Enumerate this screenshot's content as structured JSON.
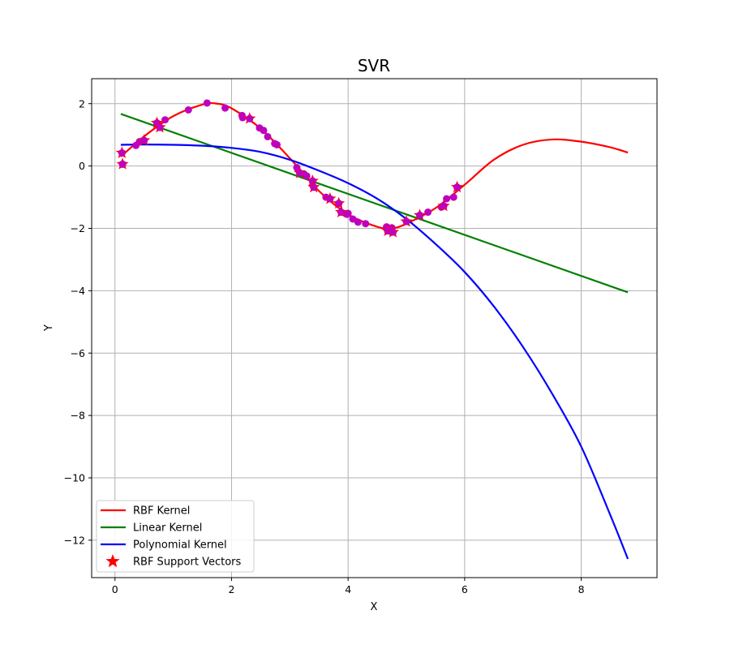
{
  "chart_data": {
    "type": "line",
    "title": "SVR",
    "xlabel": "X",
    "ylabel": "Y",
    "xlim": [
      -0.4,
      9.3
    ],
    "ylim": [
      -13.2,
      2.8
    ],
    "x_ticks": [
      0,
      2,
      4,
      6,
      8
    ],
    "x_tick_labels": [
      "0",
      "2",
      "4",
      "6",
      "8"
    ],
    "y_ticks": [
      2,
      0,
      -2,
      -4,
      -6,
      -8,
      -10,
      -12
    ],
    "y_tick_labels": [
      "2",
      "0",
      "−2",
      "−4",
      "−6",
      "−8",
      "−10",
      "−12"
    ],
    "grid": true,
    "legend_position": "lower-left",
    "colors": {
      "rbf": "#ff0000",
      "linear": "#008000",
      "poly": "#0000ff",
      "points": "#bf00bf",
      "support": "#ff0000",
      "grid": "#b0b0b0"
    },
    "series": [
      {
        "name": "RBF Kernel",
        "color": "#ff0000",
        "x": [
          0.1,
          0.5,
          1.0,
          1.5,
          1.75,
          2.0,
          2.5,
          3.0,
          3.5,
          4.0,
          4.5,
          4.75,
          5.0,
          5.5,
          6.0,
          6.5,
          7.0,
          7.5,
          8.0,
          8.5,
          8.8
        ],
        "y": [
          0.3,
          0.95,
          1.6,
          1.97,
          2.0,
          1.85,
          1.2,
          0.25,
          -0.8,
          -1.55,
          -1.95,
          -2.0,
          -1.85,
          -1.35,
          -0.6,
          0.2,
          0.68,
          0.85,
          0.78,
          0.6,
          0.43
        ]
      },
      {
        "name": "Linear Kernel",
        "color": "#008000",
        "x": [
          0.1,
          8.8
        ],
        "y": [
          1.67,
          -4.05
        ]
      },
      {
        "name": "Polynomial Kernel",
        "color": "#0000ff",
        "x": [
          0.1,
          0.5,
          1.0,
          1.5,
          2.0,
          2.5,
          3.0,
          3.5,
          4.0,
          4.5,
          5.0,
          5.5,
          6.0,
          6.5,
          7.0,
          7.5,
          8.0,
          8.5,
          8.8
        ],
        "y": [
          0.68,
          0.69,
          0.68,
          0.65,
          0.58,
          0.45,
          0.2,
          -0.15,
          -0.55,
          -1.05,
          -1.7,
          -2.5,
          -3.4,
          -4.5,
          -5.8,
          -7.3,
          -9.0,
          -11.2,
          -12.6
        ]
      }
    ],
    "data_points": {
      "x": [
        0.12,
        0.13,
        0.36,
        0.42,
        0.5,
        0.72,
        0.77,
        0.86,
        1.26,
        1.58,
        1.89,
        2.18,
        2.19,
        2.31,
        2.48,
        2.55,
        2.62,
        2.74,
        2.78,
        3.12,
        3.17,
        3.24,
        3.29,
        3.39,
        3.41,
        3.62,
        3.69,
        3.84,
        3.88,
        3.98,
        4.0,
        4.08,
        4.17,
        4.3,
        4.66,
        4.68,
        4.75,
        4.77,
        5.0,
        5.23,
        5.37,
        5.6,
        5.64,
        5.69,
        5.81,
        5.87
      ],
      "y": [
        0.42,
        0.06,
        0.66,
        0.78,
        0.82,
        1.38,
        1.24,
        1.48,
        1.8,
        2.02,
        1.86,
        1.62,
        1.55,
        1.52,
        1.22,
        1.14,
        0.94,
        0.72,
        0.68,
        -0.05,
        -0.22,
        -0.25,
        -0.32,
        -0.48,
        -0.68,
        -1.0,
        -1.05,
        -1.2,
        -1.48,
        -1.55,
        -1.52,
        -1.7,
        -1.8,
        -1.85,
        -1.95,
        -2.08,
        -1.98,
        -2.12,
        -1.78,
        -1.58,
        -1.48,
        -1.32,
        -1.28,
        -1.05,
        -1.0,
        -0.68
      ]
    },
    "support_vectors": {
      "name": "RBF Support Vectors",
      "x": [
        0.12,
        0.13,
        0.5,
        0.72,
        0.77,
        2.31,
        3.17,
        3.39,
        3.41,
        3.69,
        3.84,
        3.88,
        4.68,
        4.77,
        5.0,
        5.23,
        5.64,
        5.87
      ],
      "y": [
        0.42,
        0.06,
        0.82,
        1.38,
        1.24,
        1.52,
        -0.22,
        -0.48,
        -0.68,
        -1.05,
        -1.2,
        -1.48,
        -2.08,
        -2.12,
        -1.78,
        -1.58,
        -1.28,
        -0.68
      ]
    },
    "legend": [
      {
        "label": "RBF Kernel",
        "kind": "line",
        "color": "#ff0000"
      },
      {
        "label": "Linear Kernel",
        "kind": "line",
        "color": "#008000"
      },
      {
        "label": "Polynomial Kernel",
        "kind": "line",
        "color": "#0000ff"
      },
      {
        "label": "RBF Support Vectors",
        "kind": "star",
        "color": "#ff0000"
      }
    ]
  }
}
